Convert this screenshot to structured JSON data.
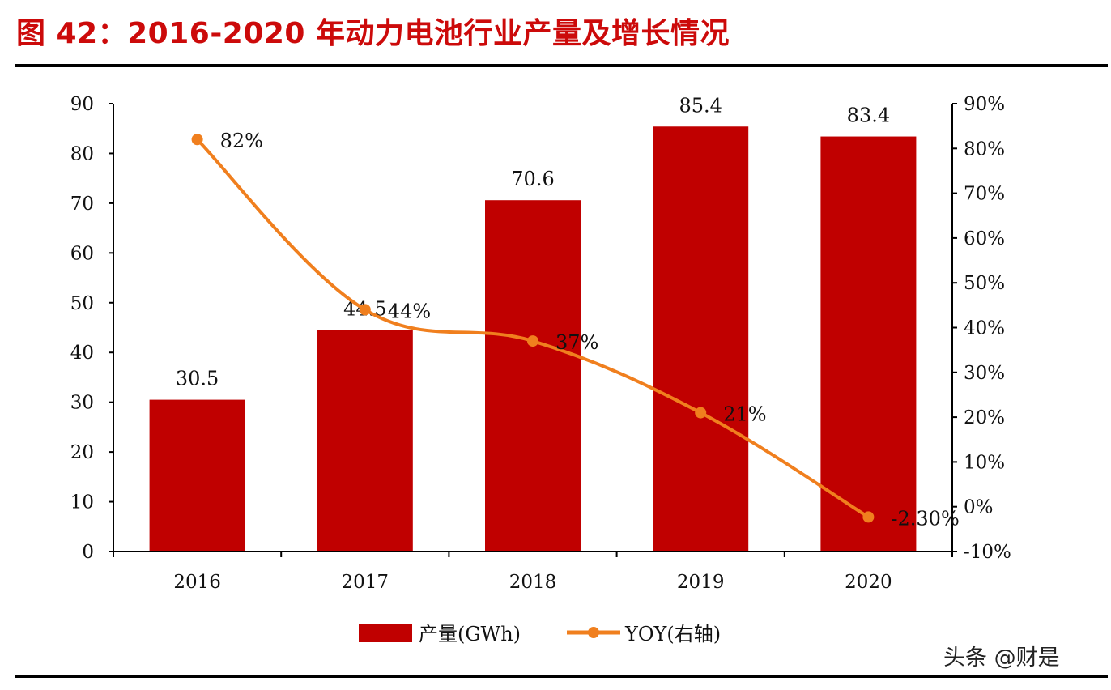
{
  "title": "图 42：2016-2020 年动力电池行业产量及增长情况",
  "watermark": "头条 @财是",
  "chart_data": {
    "type": "bar+line",
    "title": "图 42：2016-2020 年动力电池行业产量及增长情况",
    "categories": [
      "2016",
      "2017",
      "2018",
      "2019",
      "2020"
    ],
    "series": [
      {
        "name": "产量(GWh)",
        "type": "bar",
        "axis": "left",
        "color": "#c00000",
        "values": [
          30.5,
          44.5,
          70.6,
          85.4,
          83.4
        ],
        "labels": [
          "30.5",
          "44.5",
          "70.6",
          "85.4",
          "83.4"
        ]
      },
      {
        "name": "YOY(右轴)",
        "type": "line",
        "axis": "right",
        "color": "#f07f1e",
        "values": [
          82,
          44,
          37,
          21,
          -2.3
        ],
        "labels": [
          "82%",
          "44%",
          "37%",
          "21%",
          "-2.30%"
        ]
      }
    ],
    "left_axis": {
      "ylim": [
        0,
        90
      ],
      "ticks": [
        0,
        10,
        20,
        30,
        40,
        50,
        60,
        70,
        80,
        90
      ],
      "tick_labels": [
        "0",
        "10",
        "20",
        "30",
        "40",
        "50",
        "60",
        "70",
        "80",
        "90"
      ]
    },
    "right_axis": {
      "ylim": [
        -10,
        90
      ],
      "ticks": [
        -10,
        0,
        10,
        20,
        30,
        40,
        50,
        60,
        70,
        80,
        90
      ],
      "tick_labels": [
        "-10%",
        "0%",
        "10%",
        "20%",
        "30%",
        "40%",
        "50%",
        "60%",
        "70%",
        "80%",
        "90%"
      ]
    },
    "grid": false,
    "legend": "bottom"
  }
}
